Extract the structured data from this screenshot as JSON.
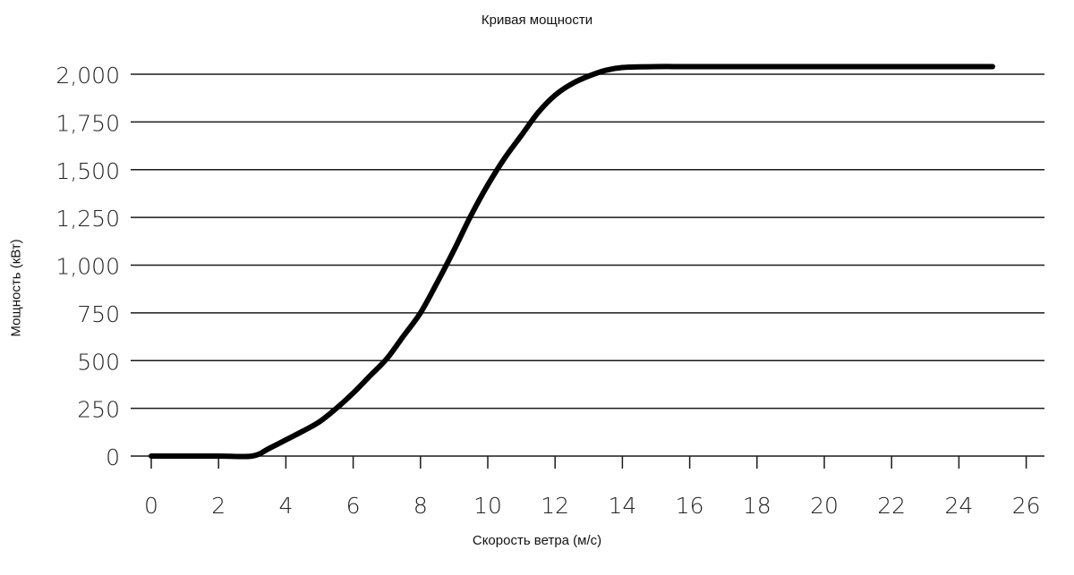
{
  "chart_data": {
    "type": "line",
    "title": "Кривая мощности",
    "xlabel": "Скорость ветра (м/с)",
    "ylabel": "Мощность (кВт)",
    "xlim": [
      0,
      26
    ],
    "ylim": [
      0,
      2000
    ],
    "x_ticks": [
      0,
      2,
      4,
      6,
      8,
      10,
      12,
      14,
      16,
      18,
      20,
      22,
      24,
      26
    ],
    "y_ticks": [
      0,
      250,
      500,
      750,
      1000,
      1250,
      1500,
      1750,
      2000
    ],
    "y_tick_labels": [
      "0",
      "250",
      "500",
      "750",
      "1,000",
      "1,250",
      "1,500",
      "1,750",
      "2,000"
    ],
    "grid": "horizontal",
    "legend": "none",
    "colors": {
      "line": "#000000",
      "grid": "#1a1a1a",
      "text": "#111111"
    },
    "series": [
      {
        "x": [
          0,
          1,
          2,
          3,
          3.5,
          4,
          4.5,
          5,
          5.5,
          6,
          6.5,
          7,
          7.5,
          8,
          8.5,
          9,
          9.5,
          10,
          10.5,
          11,
          11.5,
          12,
          12.5,
          13,
          13.5,
          14,
          15,
          16,
          18,
          20,
          22,
          24,
          25
        ],
        "y": [
          0,
          0,
          0,
          0,
          40,
          85,
          130,
          180,
          250,
          330,
          420,
          510,
          630,
          750,
          910,
          1080,
          1260,
          1420,
          1560,
          1680,
          1800,
          1890,
          1950,
          1990,
          2020,
          2035,
          2040,
          2040,
          2040,
          2040,
          2040,
          2040,
          2040
        ]
      }
    ]
  }
}
